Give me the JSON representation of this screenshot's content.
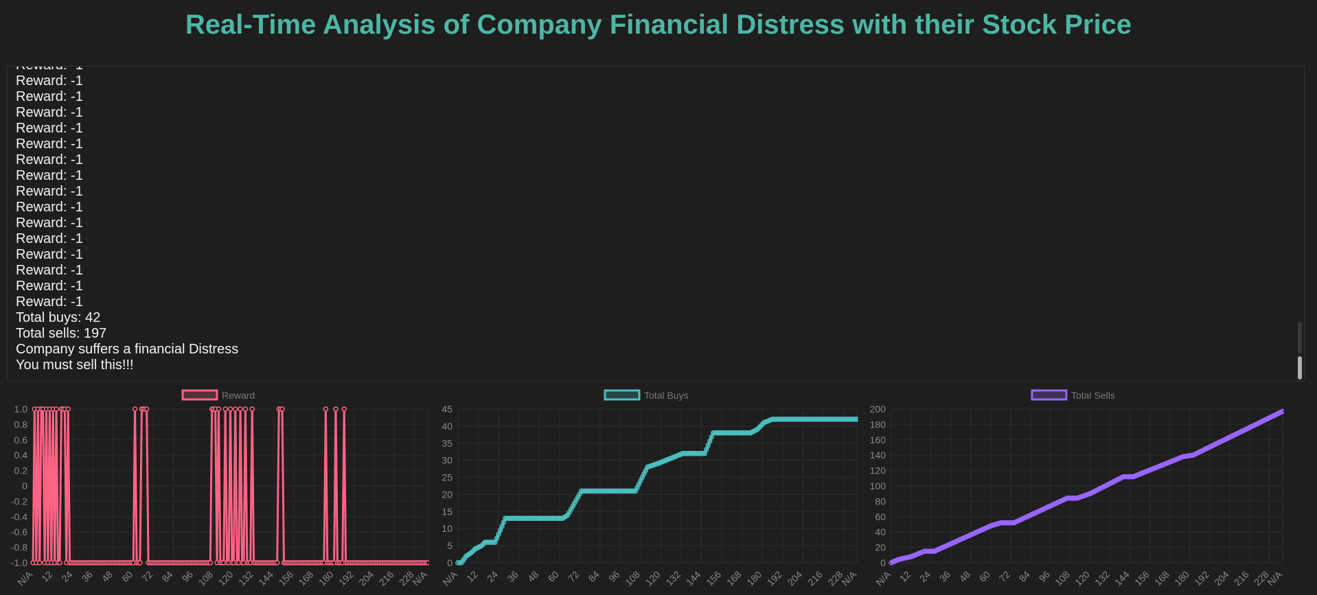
{
  "page": {
    "title": "Real-Time Analysis of Company Financial Distress with their Stock Price"
  },
  "log": {
    "lines": [
      "Reward: -1",
      "Reward: -1",
      "Reward: -1",
      "Reward: -1",
      "Reward: -1",
      "Reward: -1",
      "Reward: -1",
      "Reward: -1",
      "Reward: -1",
      "Reward: -1",
      "Reward: -1",
      "Reward: -1",
      "Reward: -1",
      "Reward: -1",
      "Reward: -1",
      "Reward: -1",
      "Total buys: 42",
      "Total sells: 197",
      "Company suffers a financial Distress",
      "You must sell this!!!"
    ]
  },
  "colors": {
    "title": "#4db6a5",
    "reward": "#ff6384",
    "buys": "#4bc0c0",
    "sells": "#9966ff",
    "grid": "#2c2c2c",
    "tick": "#8a8a8a"
  },
  "chart_data": [
    {
      "type": "line",
      "series": [
        {
          "name": "Reward",
          "color": "#ff6384"
        }
      ],
      "x_tick_labels": [
        "N/A",
        "12",
        "24",
        "36",
        "48",
        "60",
        "72",
        "84",
        "96",
        "108",
        "120",
        "132",
        "144",
        "156",
        "168",
        "180",
        "192",
        "204",
        "216",
        "228",
        "N/A"
      ],
      "ylim": [
        -1,
        1
      ],
      "y_ticks": [
        "1.0",
        "0.8",
        "0.6",
        "0.4",
        "0.2",
        "0",
        "-0.2",
        "-0.4",
        "-0.6",
        "-0.8",
        "-1.0"
      ],
      "positive_ranges": [
        [
          1,
          1
        ],
        [
          3,
          3
        ],
        [
          5,
          6
        ],
        [
          8,
          8
        ],
        [
          10,
          10
        ],
        [
          12,
          12
        ],
        [
          14,
          14
        ],
        [
          17,
          19
        ],
        [
          21,
          21
        ],
        [
          61,
          61
        ],
        [
          65,
          68
        ],
        [
          107,
          109
        ],
        [
          111,
          111
        ],
        [
          115,
          115
        ],
        [
          118,
          118
        ],
        [
          121,
          121
        ],
        [
          124,
          124
        ],
        [
          127,
          127
        ],
        [
          131,
          131
        ],
        [
          147,
          149
        ],
        [
          175,
          175
        ],
        [
          181,
          181
        ],
        [
          186,
          186
        ]
      ],
      "grid": true,
      "legend": "top-center"
    },
    {
      "type": "line",
      "series": [
        {
          "name": "Total Buys",
          "color": "#4bc0c0"
        }
      ],
      "x_tick_labels": [
        "N/A",
        "12",
        "24",
        "36",
        "48",
        "60",
        "72",
        "84",
        "96",
        "108",
        "120",
        "132",
        "144",
        "156",
        "168",
        "180",
        "192",
        "204",
        "216",
        "228",
        "N/A"
      ],
      "ylim": [
        0,
        45
      ],
      "y_ticks": [
        "45",
        "40",
        "35",
        "30",
        "25",
        "20",
        "15",
        "10",
        "5",
        "0"
      ],
      "points": [
        [
          0,
          0
        ],
        [
          2,
          0
        ],
        [
          5,
          2
        ],
        [
          8,
          3
        ],
        [
          10,
          4
        ],
        [
          14,
          5
        ],
        [
          16,
          6
        ],
        [
          22,
          6
        ],
        [
          28,
          13
        ],
        [
          62,
          13
        ],
        [
          65,
          14
        ],
        [
          73,
          21
        ],
        [
          105,
          21
        ],
        [
          112,
          28
        ],
        [
          118,
          29
        ],
        [
          123,
          30
        ],
        [
          128,
          31
        ],
        [
          133,
          32
        ],
        [
          146,
          32
        ],
        [
          151,
          38
        ],
        [
          173,
          38
        ],
        [
          177,
          39
        ],
        [
          181,
          41
        ],
        [
          186,
          42
        ],
        [
          236,
          42
        ]
      ],
      "grid": true,
      "legend": "top-center"
    },
    {
      "type": "line",
      "series": [
        {
          "name": "Total Sells",
          "color": "#9966ff"
        }
      ],
      "x_tick_labels": [
        "N/A",
        "12",
        "24",
        "36",
        "48",
        "60",
        "72",
        "84",
        "96",
        "108",
        "120",
        "132",
        "144",
        "156",
        "168",
        "180",
        "192",
        "204",
        "216",
        "228",
        "N/A"
      ],
      "ylim": [
        0,
        200
      ],
      "y_ticks": [
        "200",
        "180",
        "160",
        "140",
        "120",
        "100",
        "80",
        "60",
        "40",
        "20",
        "0"
      ],
      "points": [
        [
          0,
          0
        ],
        [
          4,
          4
        ],
        [
          12,
          8
        ],
        [
          20,
          15
        ],
        [
          26,
          15
        ],
        [
          60,
          48
        ],
        [
          66,
          52
        ],
        [
          74,
          52
        ],
        [
          106,
          84
        ],
        [
          112,
          84
        ],
        [
          120,
          90
        ],
        [
          140,
          112
        ],
        [
          146,
          112
        ],
        [
          176,
          138
        ],
        [
          182,
          140
        ],
        [
          236,
          197
        ]
      ],
      "grid": true,
      "legend": "top-center"
    }
  ]
}
